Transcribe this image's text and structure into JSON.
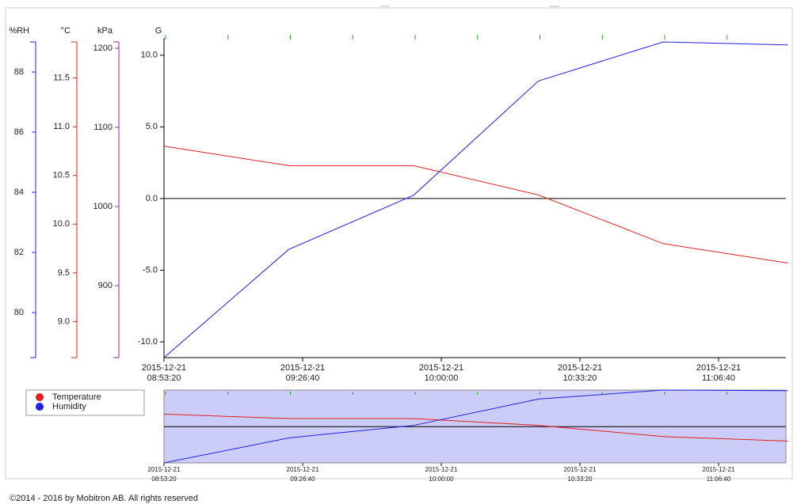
{
  "chart_data": {
    "type": "line",
    "x": [
      "2015-12-21 08:53:20",
      "2015-12-21 09:23:20",
      "2015-12-21 09:53:20",
      "2015-12-21 10:23:20",
      "2015-12-21 10:53:20",
      "2015-12-21 11:23:20"
    ],
    "xlim": [
      "2015-12-21 08:53:20",
      "2015-12-21 11:23:20"
    ],
    "xticks": [
      {
        "value": "2015-12-21 08:53:20",
        "label": [
          "2015-12-21",
          "08:53:20"
        ]
      },
      {
        "value": "2015-12-21 09:26:40",
        "label": [
          "2015-12-21",
          "09:26:40"
        ]
      },
      {
        "value": "2015-12-21 10:00:00",
        "label": [
          "2015-12-21",
          "10:00:00"
        ]
      },
      {
        "value": "2015-12-21 10:33:20",
        "label": [
          "2015-12-21",
          "10:33:20"
        ]
      },
      {
        "value": "2015-12-21 11:06:40",
        "label": [
          "2015-12-21",
          "11:06:40"
        ]
      }
    ],
    "ylabel": "G",
    "ylim": [
      -11.1,
      11.2
    ],
    "yticks": [
      {
        "value": -10,
        "label": "-10.0"
      },
      {
        "value": -5,
        "label": "-5.0"
      },
      {
        "value": 0,
        "label": "0.0"
      },
      {
        "value": 5,
        "label": "5.0"
      },
      {
        "value": 10,
        "label": "10.0"
      }
    ],
    "y2label": "%RH",
    "y2color": "#2020d0",
    "y2lim": [
      78.5,
      89
    ],
    "y2ticks": [
      80,
      82,
      84,
      86,
      88
    ],
    "y3label": "°C",
    "y3color": "#d02020",
    "y3lim": [
      8.63,
      11.87
    ],
    "y3ticks": [
      {
        "value": 9,
        "label": "9.0"
      },
      {
        "value": 9.5,
        "label": "9.5"
      },
      {
        "value": 10,
        "label": "10.0"
      },
      {
        "value": 10.5,
        "label": "10.5"
      },
      {
        "value": 11,
        "label": "11.0"
      },
      {
        "value": 11.5,
        "label": "11.5"
      }
    ],
    "y4label": "kPa",
    "y4color": "#a020a0",
    "y4lim": [
      809,
      1208
    ],
    "y4ticks": [
      900,
      1000,
      1100,
      1200
    ],
    "series": [
      {
        "name": "Temperature",
        "color": "#e02020",
        "axis": "y3",
        "values": [
          10.8,
          10.6,
          10.6,
          10.3,
          9.8,
          9.6
        ]
      },
      {
        "name": "Humidity",
        "color": "#2020e0",
        "axis": "y2",
        "values": [
          78.5,
          82.1,
          83.9,
          87.7,
          89.0,
          88.9
        ]
      }
    ],
    "footer": "©2014 - 2016 by Mobitron AB. All rights reserved"
  }
}
